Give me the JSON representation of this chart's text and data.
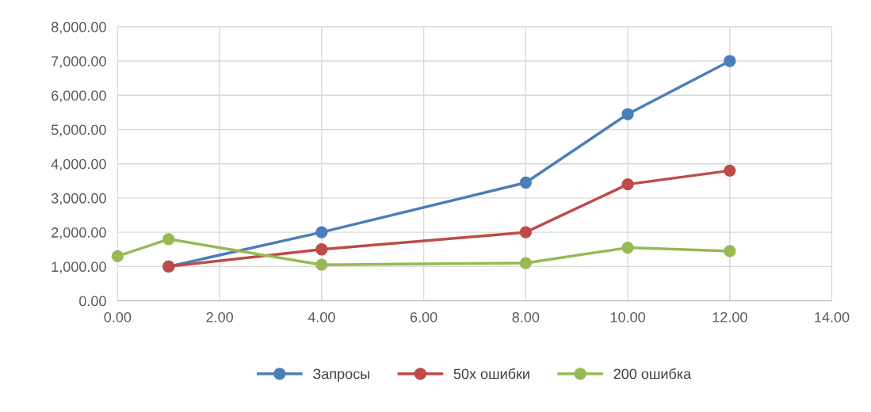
{
  "chart_data": {
    "type": "line",
    "xlim": [
      0,
      14
    ],
    "xticks": [
      {
        "value": 0,
        "label": "0.00"
      },
      {
        "value": 2,
        "label": "2.00"
      },
      {
        "value": 4,
        "label": "4.00"
      },
      {
        "value": 6,
        "label": "6.00"
      },
      {
        "value": 8,
        "label": "8.00"
      },
      {
        "value": 10,
        "label": "10.00"
      },
      {
        "value": 12,
        "label": "12.00"
      },
      {
        "value": 14,
        "label": "14.00"
      }
    ],
    "ylim": [
      0,
      8000
    ],
    "yticks": [
      {
        "value": 0,
        "label": "0.00"
      },
      {
        "value": 1000,
        "label": "1,000.00"
      },
      {
        "value": 2000,
        "label": "2,000.00"
      },
      {
        "value": 3000,
        "label": "3,000.00"
      },
      {
        "value": 4000,
        "label": "4,000.00"
      },
      {
        "value": 5000,
        "label": "5,000.00"
      },
      {
        "value": 6000,
        "label": "6,000.00"
      },
      {
        "value": 7000,
        "label": "7,000.00"
      },
      {
        "value": 8000,
        "label": "8,000.00"
      }
    ],
    "grid": true,
    "legend": "bottom",
    "marker": "circle",
    "line_style": "solid",
    "series": [
      {
        "name": "Запросы",
        "color": "#4a7ebb",
        "x": [
          1,
          4,
          8,
          10,
          12
        ],
        "values": [
          1000,
          2000,
          3450,
          5450,
          7000
        ]
      },
      {
        "name": "50х ошибки",
        "color": "#be4b48",
        "x": [
          1,
          4,
          8,
          10,
          12
        ],
        "values": [
          1000,
          1500,
          2000,
          3400,
          3800
        ]
      },
      {
        "name": "200 ошибка",
        "color": "#98b954",
        "x": [
          0,
          1,
          4,
          8,
          10,
          12
        ],
        "values": [
          1300,
          1800,
          1050,
          1100,
          1550,
          1450
        ]
      }
    ]
  }
}
